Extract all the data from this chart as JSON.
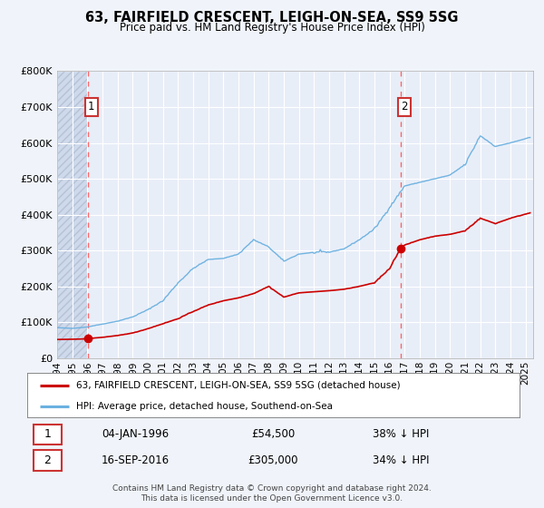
{
  "title": "63, FAIRFIELD CRESCENT, LEIGH-ON-SEA, SS9 5SG",
  "subtitle": "Price paid vs. HM Land Registry's House Price Index (HPI)",
  "legend_line1": "63, FAIRFIELD CRESCENT, LEIGH-ON-SEA, SS9 5SG (detached house)",
  "legend_line2": "HPI: Average price, detached house, Southend-on-Sea",
  "footer1": "Contains HM Land Registry data © Crown copyright and database right 2024.",
  "footer2": "This data is licensed under the Open Government Licence v3.0.",
  "sale1_date": "04-JAN-1996",
  "sale1_price": "£54,500",
  "sale1_hpi": "38% ↓ HPI",
  "sale2_date": "16-SEP-2016",
  "sale2_price": "£305,000",
  "sale2_hpi": "34% ↓ HPI",
  "sale1_year": 1996.01,
  "sale1_value": 54500,
  "sale2_year": 2016.71,
  "sale2_value": 305000,
  "hpi_color": "#6ab0e0",
  "price_color": "#cc0000",
  "sale_marker_color": "#cc0000",
  "dashed_line_color": "#ff6666",
  "background_color": "#f0f4fa",
  "plot_bg_color": "#e8eef8",
  "hatch_color": "#c8d4e8",
  "grid_color": "#ffffff",
  "ylim": [
    0,
    800000
  ],
  "xlim_start": 1994.0,
  "xlim_end": 2025.5,
  "yticks": [
    0,
    100000,
    200000,
    300000,
    400000,
    500000,
    600000,
    700000,
    800000
  ],
  "xticks": [
    1994,
    1995,
    1996,
    1997,
    1998,
    1999,
    2000,
    2001,
    2002,
    2003,
    2004,
    2005,
    2006,
    2007,
    2008,
    2009,
    2010,
    2011,
    2012,
    2013,
    2014,
    2015,
    2016,
    2017,
    2018,
    2019,
    2020,
    2021,
    2022,
    2023,
    2024,
    2025
  ],
  "hpi_anchors": [
    [
      1994.0,
      85000
    ],
    [
      1995.0,
      83000
    ],
    [
      1996.0,
      87000
    ],
    [
      1997.0,
      95000
    ],
    [
      1998.0,
      103000
    ],
    [
      1999.0,
      115000
    ],
    [
      2000.0,
      135000
    ],
    [
      2001.0,
      160000
    ],
    [
      2002.0,
      210000
    ],
    [
      2003.0,
      250000
    ],
    [
      2004.0,
      275000
    ],
    [
      2005.0,
      278000
    ],
    [
      2006.0,
      290000
    ],
    [
      2007.0,
      330000
    ],
    [
      2008.0,
      310000
    ],
    [
      2009.0,
      270000
    ],
    [
      2010.0,
      290000
    ],
    [
      2011.0,
      295000
    ],
    [
      2012.0,
      295000
    ],
    [
      2013.0,
      305000
    ],
    [
      2014.0,
      330000
    ],
    [
      2015.0,
      360000
    ],
    [
      2016.0,
      420000
    ],
    [
      2017.0,
      480000
    ],
    [
      2018.0,
      490000
    ],
    [
      2019.0,
      500000
    ],
    [
      2020.0,
      510000
    ],
    [
      2021.0,
      540000
    ],
    [
      2022.0,
      620000
    ],
    [
      2023.0,
      590000
    ],
    [
      2024.0,
      600000
    ],
    [
      2025.3,
      615000
    ]
  ],
  "price_anchors": [
    [
      1994.0,
      52000
    ],
    [
      1995.5,
      53000
    ],
    [
      1996.01,
      54500
    ],
    [
      1997.0,
      58000
    ],
    [
      1998.0,
      63000
    ],
    [
      1999.0,
      70000
    ],
    [
      2000.0,
      82000
    ],
    [
      2001.0,
      96000
    ],
    [
      2002.0,
      110000
    ],
    [
      2003.0,
      130000
    ],
    [
      2004.0,
      148000
    ],
    [
      2005.0,
      160000
    ],
    [
      2006.0,
      168000
    ],
    [
      2007.0,
      180000
    ],
    [
      2008.0,
      200000
    ],
    [
      2009.0,
      170000
    ],
    [
      2010.0,
      182000
    ],
    [
      2011.0,
      185000
    ],
    [
      2012.0,
      188000
    ],
    [
      2013.0,
      192000
    ],
    [
      2014.0,
      200000
    ],
    [
      2015.0,
      210000
    ],
    [
      2016.0,
      250000
    ],
    [
      2016.71,
      305000
    ],
    [
      2017.0,
      315000
    ],
    [
      2018.0,
      330000
    ],
    [
      2019.0,
      340000
    ],
    [
      2020.0,
      345000
    ],
    [
      2021.0,
      355000
    ],
    [
      2022.0,
      390000
    ],
    [
      2023.0,
      375000
    ],
    [
      2024.0,
      390000
    ],
    [
      2025.3,
      405000
    ]
  ]
}
